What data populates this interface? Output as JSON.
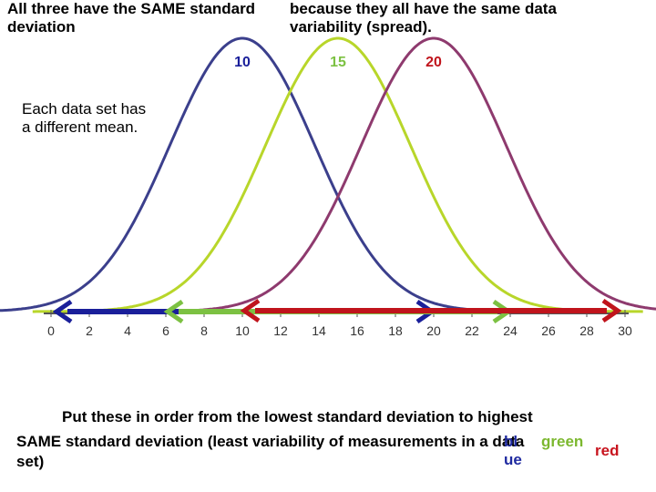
{
  "slide": {
    "top_left": "All three have the SAME standard deviation",
    "top_right": "because they all have the same data variability (spread).",
    "side_note": "Each data set has a different mean.",
    "question_line1": "Put these in order from the lowest standard deviation to highest",
    "question_line2": "SAME standard deviation  (least variability of measurements in a data",
    "question_line3": "set)",
    "answer_blue": "blue",
    "answer_green": "green",
    "answer_red": "red"
  },
  "colors": {
    "blue": "#3b3f8c",
    "green": "#b8d62a",
    "red": "#8e3a6e",
    "arrow_blue": "#1a1f9a",
    "arrow_green": "#7cc142",
    "arrow_red": "#c0141c"
  },
  "chart_data": {
    "type": "line",
    "title": "",
    "xlabel": "",
    "ylabel": "",
    "xlim": [
      0,
      30
    ],
    "x_ticks": [
      "0",
      "2",
      "4",
      "6",
      "8",
      "10",
      "12",
      "14",
      "16",
      "18",
      "20",
      "22",
      "24",
      "26",
      "28",
      "30"
    ],
    "grid": false,
    "series": [
      {
        "name": "10",
        "mean": 10,
        "color": "#3b3f8c",
        "arrow_range": [
          0,
          20
        ]
      },
      {
        "name": "15",
        "mean": 15,
        "color": "#b8d62a",
        "arrow_range": [
          6,
          24
        ]
      },
      {
        "name": "20",
        "mean": 20,
        "color": "#8e3a6e",
        "arrow_range": [
          10,
          30
        ]
      }
    ]
  }
}
